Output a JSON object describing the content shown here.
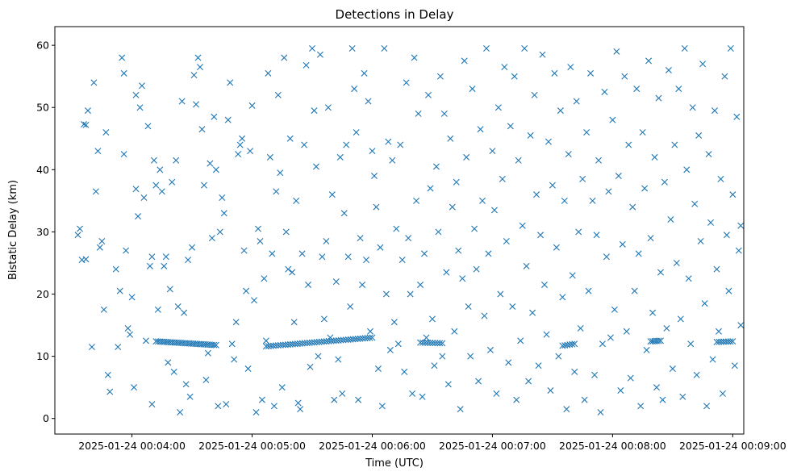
{
  "chart_data": {
    "type": "scatter",
    "title": "Detections in Delay",
    "xlabel": "Time (UTC)",
    "ylabel": "Bistatic Delay (km)",
    "marker": "x",
    "color": "#1f77b4",
    "xlim_seconds": [
      201.5,
      545.5
    ],
    "ylim": [
      -2.5,
      63
    ],
    "x_ticks": [
      {
        "label": "2025-01-24 00:04:00",
        "seconds": 240
      },
      {
        "label": "2025-01-24 00:05:00",
        "seconds": 300
      },
      {
        "label": "2025-01-24 00:06:00",
        "seconds": 360
      },
      {
        "label": "2025-01-24 00:07:00",
        "seconds": 420
      },
      {
        "label": "2025-01-24 00:08:00",
        "seconds": 480
      },
      {
        "label": "2025-01-24 00:09:00",
        "seconds": 540
      }
    ],
    "y_ticks": [
      0,
      10,
      20,
      30,
      40,
      50,
      60
    ],
    "tracks": [
      {
        "name": "track-1",
        "t_start": 252,
        "t_end": 282,
        "y_start": 12.4,
        "y_end": 11.8,
        "n": 30
      },
      {
        "name": "track-2",
        "t_start": 307,
        "t_end": 360,
        "y_start": 11.6,
        "y_end": 13.0,
        "n": 45
      },
      {
        "name": "track-3",
        "t_start": 384,
        "t_end": 395,
        "y_start": 12.2,
        "y_end": 12.1,
        "n": 10
      },
      {
        "name": "track-4",
        "t_start": 455,
        "t_end": 461,
        "y_start": 11.7,
        "y_end": 12.0,
        "n": 6
      },
      {
        "name": "track-5",
        "t_start": 499,
        "t_end": 504,
        "y_start": 12.4,
        "y_end": 12.5,
        "n": 6
      },
      {
        "name": "track-6",
        "t_start": 532,
        "t_end": 540,
        "y_start": 12.3,
        "y_end": 12.4,
        "n": 8
      }
    ],
    "points": [
      [
        213,
        29.5
      ],
      [
        214,
        30.5
      ],
      [
        215,
        25.5
      ],
      [
        216,
        47.3
      ],
      [
        217,
        25.6
      ],
      [
        217,
        47.2
      ],
      [
        218,
        49.5
      ],
      [
        220,
        11.5
      ],
      [
        221,
        54
      ],
      [
        222,
        36.5
      ],
      [
        223,
        43
      ],
      [
        224,
        27.5
      ],
      [
        225,
        28.5
      ],
      [
        226,
        17.5
      ],
      [
        227,
        46
      ],
      [
        228,
        7
      ],
      [
        229,
        4.3
      ],
      [
        232,
        24
      ],
      [
        233,
        11.5
      ],
      [
        234,
        20.5
      ],
      [
        235,
        58
      ],
      [
        236,
        55.5
      ],
      [
        236,
        42.5
      ],
      [
        237,
        27
      ],
      [
        238,
        14.5
      ],
      [
        239,
        13.5
      ],
      [
        240,
        19.5
      ],
      [
        241,
        5
      ],
      [
        242,
        52
      ],
      [
        242,
        36.9
      ],
      [
        243,
        32.5
      ],
      [
        244,
        50
      ],
      [
        245,
        53.5
      ],
      [
        246,
        35.5
      ],
      [
        247,
        12.5
      ],
      [
        248,
        47
      ],
      [
        249,
        24.5
      ],
      [
        250,
        2.3
      ],
      [
        250,
        26
      ],
      [
        251,
        41.5
      ],
      [
        252,
        37.5
      ],
      [
        253,
        17.5
      ],
      [
        254,
        40
      ],
      [
        255,
        36.5
      ],
      [
        256,
        24.5
      ],
      [
        257,
        26
      ],
      [
        258,
        9
      ],
      [
        259,
        20.8
      ],
      [
        260,
        38
      ],
      [
        261,
        7.5
      ],
      [
        262,
        41.5
      ],
      [
        263,
        18
      ],
      [
        264,
        1
      ],
      [
        265,
        51
      ],
      [
        266,
        17
      ],
      [
        267,
        5.5
      ],
      [
        268,
        25.5
      ],
      [
        269,
        3.5
      ],
      [
        270,
        27.5
      ],
      [
        271,
        55.2
      ],
      [
        272,
        50.5
      ],
      [
        273,
        58
      ],
      [
        274,
        56.5
      ],
      [
        275,
        46.5
      ],
      [
        276,
        37.5
      ],
      [
        277,
        6.2
      ],
      [
        278,
        10.5
      ],
      [
        279,
        41
      ],
      [
        280,
        29
      ],
      [
        281,
        48.5
      ],
      [
        282,
        40
      ],
      [
        283,
        2
      ],
      [
        284,
        30
      ],
      [
        285,
        35.5
      ],
      [
        286,
        33
      ],
      [
        287,
        2.3
      ],
      [
        288,
        48
      ],
      [
        289,
        54
      ],
      [
        290,
        12
      ],
      [
        291,
        9.5
      ],
      [
        292,
        15.5
      ],
      [
        293,
        42.5
      ],
      [
        294,
        44
      ],
      [
        295,
        45
      ],
      [
        296,
        27
      ],
      [
        297,
        20.5
      ],
      [
        298,
        8
      ],
      [
        299,
        43
      ],
      [
        300,
        50.3
      ],
      [
        301,
        19
      ],
      [
        302,
        1
      ],
      [
        303,
        30.5
      ],
      [
        304,
        28.5
      ],
      [
        305,
        3
      ],
      [
        306,
        22.5
      ],
      [
        307,
        12.5
      ],
      [
        308,
        55.5
      ],
      [
        309,
        42
      ],
      [
        310,
        26.5
      ],
      [
        311,
        2
      ],
      [
        312,
        36.5
      ],
      [
        313,
        52
      ],
      [
        314,
        39.5
      ],
      [
        315,
        5
      ],
      [
        316,
        58
      ],
      [
        317,
        30
      ],
      [
        318,
        24
      ],
      [
        319,
        45
      ],
      [
        320,
        23.5
      ],
      [
        321,
        15.5
      ],
      [
        322,
        35
      ],
      [
        323,
        2.5
      ],
      [
        324,
        1.5
      ],
      [
        325,
        26.5
      ],
      [
        326,
        44
      ],
      [
        327,
        56.8
      ],
      [
        328,
        21.5
      ],
      [
        329,
        8.3
      ],
      [
        330,
        59.5
      ],
      [
        331,
        49.5
      ],
      [
        332,
        40.5
      ],
      [
        333,
        10
      ],
      [
        334,
        58.5
      ],
      [
        335,
        26
      ],
      [
        336,
        16
      ],
      [
        337,
        28.5
      ],
      [
        338,
        50
      ],
      [
        339,
        13
      ],
      [
        340,
        36
      ],
      [
        341,
        3
      ],
      [
        342,
        22
      ],
      [
        343,
        9.5
      ],
      [
        344,
        42
      ],
      [
        345,
        4
      ],
      [
        346,
        33
      ],
      [
        347,
        44
      ],
      [
        348,
        26
      ],
      [
        349,
        18
      ],
      [
        350,
        59.5
      ],
      [
        351,
        53
      ],
      [
        352,
        46
      ],
      [
        353,
        3
      ],
      [
        354,
        29
      ],
      [
        355,
        21.5
      ],
      [
        356,
        55.5
      ],
      [
        357,
        25.5
      ],
      [
        358,
        51
      ],
      [
        359,
        14
      ],
      [
        360,
        43
      ],
      [
        361,
        39
      ],
      [
        362,
        34
      ],
      [
        363,
        8
      ],
      [
        364,
        27.5
      ],
      [
        365,
        2
      ],
      [
        366,
        59.5
      ],
      [
        367,
        20
      ],
      [
        368,
        44.5
      ],
      [
        369,
        11
      ],
      [
        370,
        41.5
      ],
      [
        371,
        15.5
      ],
      [
        372,
        30.5
      ],
      [
        373,
        12
      ],
      [
        374,
        44
      ],
      [
        375,
        25.5
      ],
      [
        376,
        7.5
      ],
      [
        377,
        54
      ],
      [
        378,
        29
      ],
      [
        379,
        20
      ],
      [
        380,
        4
      ],
      [
        381,
        58
      ],
      [
        382,
        35
      ],
      [
        383,
        49
      ],
      [
        384,
        21.5
      ],
      [
        385,
        3.5
      ],
      [
        386,
        26.5
      ],
      [
        387,
        13
      ],
      [
        388,
        52
      ],
      [
        389,
        37
      ],
      [
        390,
        16
      ],
      [
        391,
        8.5
      ],
      [
        392,
        40.5
      ],
      [
        393,
        30
      ],
      [
        394,
        55
      ],
      [
        395,
        10
      ],
      [
        396,
        49
      ],
      [
        397,
        23.5
      ],
      [
        398,
        5.5
      ],
      [
        399,
        45
      ],
      [
        400,
        34
      ],
      [
        401,
        14
      ],
      [
        402,
        38
      ],
      [
        403,
        27
      ],
      [
        404,
        1.5
      ],
      [
        405,
        22.5
      ],
      [
        406,
        57.5
      ],
      [
        407,
        42
      ],
      [
        408,
        18
      ],
      [
        409,
        10
      ],
      [
        410,
        53
      ],
      [
        411,
        30.5
      ],
      [
        412,
        24
      ],
      [
        413,
        6
      ],
      [
        414,
        46.5
      ],
      [
        415,
        35
      ],
      [
        416,
        16.5
      ],
      [
        417,
        59.5
      ],
      [
        418,
        26.5
      ],
      [
        419,
        11
      ],
      [
        420,
        43
      ],
      [
        421,
        33.5
      ],
      [
        422,
        4
      ],
      [
        423,
        50
      ],
      [
        424,
        20
      ],
      [
        425,
        38.5
      ],
      [
        426,
        56.5
      ],
      [
        427,
        28.5
      ],
      [
        428,
        9
      ],
      [
        429,
        47
      ],
      [
        430,
        18
      ],
      [
        431,
        55
      ],
      [
        432,
        3
      ],
      [
        433,
        41.5
      ],
      [
        434,
        12.5
      ],
      [
        435,
        31
      ],
      [
        436,
        59.5
      ],
      [
        437,
        24.5
      ],
      [
        438,
        6
      ],
      [
        439,
        45.5
      ],
      [
        440,
        17
      ],
      [
        441,
        52
      ],
      [
        442,
        36
      ],
      [
        443,
        8.5
      ],
      [
        444,
        29.5
      ],
      [
        445,
        58.5
      ],
      [
        446,
        21.5
      ],
      [
        447,
        13.5
      ],
      [
        448,
        44.5
      ],
      [
        449,
        4.5
      ],
      [
        450,
        37.5
      ],
      [
        451,
        55.5
      ],
      [
        452,
        27.5
      ],
      [
        453,
        10
      ],
      [
        454,
        49.5
      ],
      [
        455,
        19.5
      ],
      [
        456,
        35
      ],
      [
        457,
        1.5
      ],
      [
        458,
        42.5
      ],
      [
        459,
        56.5
      ],
      [
        460,
        23
      ],
      [
        461,
        7.5
      ],
      [
        462,
        51
      ],
      [
        463,
        30
      ],
      [
        464,
        14.5
      ],
      [
        465,
        38.5
      ],
      [
        466,
        3
      ],
      [
        467,
        46
      ],
      [
        468,
        20.5
      ],
      [
        469,
        55.5
      ],
      [
        470,
        35
      ],
      [
        471,
        7
      ],
      [
        472,
        29.5
      ],
      [
        473,
        41.5
      ],
      [
        474,
        1
      ],
      [
        475,
        12
      ],
      [
        476,
        52.5
      ],
      [
        477,
        26
      ],
      [
        478,
        36.5
      ],
      [
        479,
        13
      ],
      [
        480,
        48
      ],
      [
        481,
        17.5
      ],
      [
        482,
        59
      ],
      [
        483,
        39
      ],
      [
        484,
        4.5
      ],
      [
        485,
        28
      ],
      [
        486,
        55
      ],
      [
        487,
        14
      ],
      [
        488,
        44
      ],
      [
        489,
        6.5
      ],
      [
        490,
        34
      ],
      [
        491,
        20.5
      ],
      [
        492,
        53
      ],
      [
        493,
        26.5
      ],
      [
        494,
        2
      ],
      [
        495,
        46
      ],
      [
        496,
        37
      ],
      [
        497,
        11
      ],
      [
        498,
        57.5
      ],
      [
        499,
        29
      ],
      [
        500,
        17
      ],
      [
        501,
        42
      ],
      [
        502,
        5
      ],
      [
        503,
        51.5
      ],
      [
        504,
        23.5
      ],
      [
        505,
        3
      ],
      [
        506,
        38
      ],
      [
        507,
        14.5
      ],
      [
        508,
        56
      ],
      [
        509,
        32
      ],
      [
        510,
        8
      ],
      [
        511,
        44
      ],
      [
        512,
        25
      ],
      [
        513,
        53
      ],
      [
        514,
        16
      ],
      [
        515,
        3.5
      ],
      [
        516,
        59.5
      ],
      [
        517,
        40
      ],
      [
        518,
        22.5
      ],
      [
        519,
        12
      ],
      [
        520,
        50
      ],
      [
        521,
        34.5
      ],
      [
        522,
        7
      ],
      [
        523,
        45.5
      ],
      [
        524,
        28.5
      ],
      [
        525,
        57
      ],
      [
        526,
        18.5
      ],
      [
        527,
        2
      ],
      [
        528,
        42.5
      ],
      [
        529,
        31.5
      ],
      [
        530,
        9.5
      ],
      [
        531,
        49.5
      ],
      [
        532,
        24
      ],
      [
        533,
        14
      ],
      [
        534,
        38.5
      ],
      [
        535,
        4
      ],
      [
        536,
        55
      ],
      [
        537,
        29.5
      ],
      [
        538,
        20.5
      ],
      [
        539,
        59.5
      ],
      [
        540,
        36
      ],
      [
        541,
        8.5
      ],
      [
        542,
        48.5
      ],
      [
        543,
        27
      ],
      [
        544,
        15
      ],
      [
        544,
        31
      ]
    ]
  }
}
